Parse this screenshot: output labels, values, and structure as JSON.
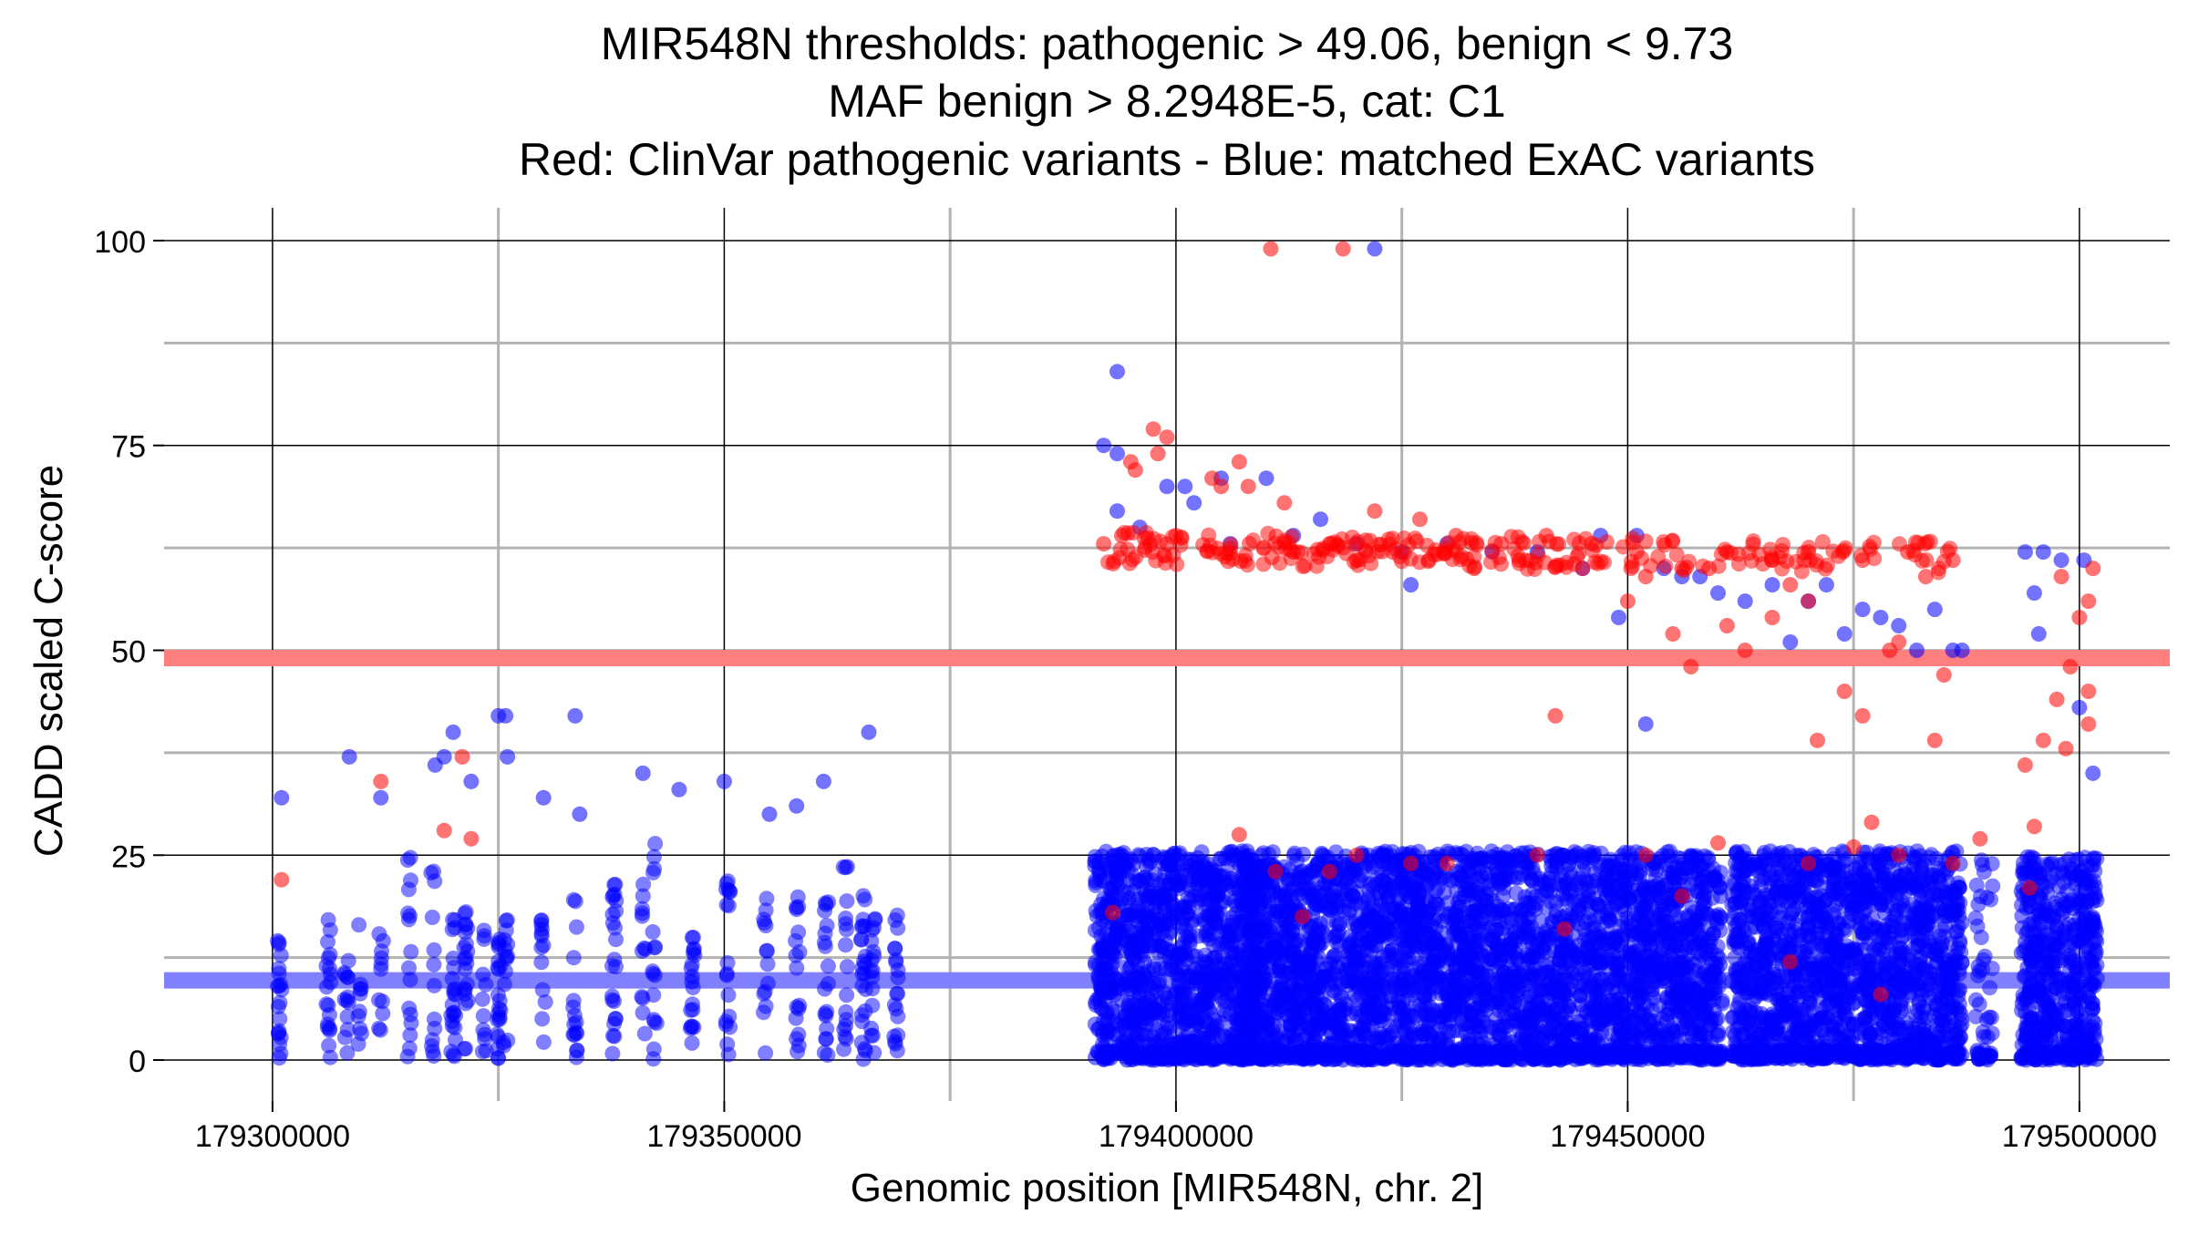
{
  "chart_data": {
    "type": "scatter",
    "title_lines": [
      "MIR548N thresholds: pathogenic > 49.06, benign < 9.73",
      "MAF benign > 8.2948E-5, cat: C1",
      "Red: ClinVar pathogenic variants - Blue: matched ExAC variants"
    ],
    "xlabel": "Genomic position [MIR548N, chr. 2]",
    "ylabel": "CADD scaled C-score",
    "xlim": [
      179288000,
      179510000
    ],
    "ylim": [
      -5,
      104
    ],
    "x_ticks": [
      179300000,
      179350000,
      179400000,
      179450000,
      179500000
    ],
    "x_tick_labels": [
      "179300000",
      "179350000",
      "179400000",
      "179450000",
      "179500000"
    ],
    "y_ticks": [
      0,
      25,
      50,
      75,
      100
    ],
    "y_tick_labels": [
      "0",
      "25",
      "50",
      "75",
      "100"
    ],
    "x_minor_gridlines": [
      179325000,
      179375000,
      179425000,
      179475000
    ],
    "y_minor_gridlines": [
      12.5,
      37.5,
      62.5,
      87.5
    ],
    "grid": true,
    "thresholds": [
      {
        "name": "pathogenic",
        "value": 49.06,
        "color": "#ff7f7f"
      },
      {
        "name": "benign",
        "value": 9.73,
        "color": "#8080ff"
      }
    ],
    "series_colors": {
      "pathogenic": "#ff0000",
      "benign": "#0000ff"
    },
    "outlier_points": {
      "pathogenic": [
        [
          179410500,
          99
        ],
        [
          179418500,
          99
        ],
        [
          179397500,
          77
        ],
        [
          179399000,
          76
        ],
        [
          179395000,
          73
        ],
        [
          179395500,
          72
        ],
        [
          179398000,
          74
        ],
        [
          179407000,
          73
        ],
        [
          179408000,
          70
        ],
        [
          179412000,
          68
        ],
        [
          179392000,
          63
        ],
        [
          179394000,
          64
        ],
        [
          179400000,
          64
        ],
        [
          179404000,
          71
        ],
        [
          179405000,
          70
        ],
        [
          179417000,
          63
        ],
        [
          179422000,
          67
        ],
        [
          179427000,
          66
        ],
        [
          179431000,
          64
        ],
        [
          179436000,
          63
        ],
        [
          179441000,
          64
        ],
        [
          179446000,
          63
        ],
        [
          179451000,
          62
        ],
        [
          179456000,
          60
        ],
        [
          179461000,
          62
        ],
        [
          179466000,
          61
        ],
        [
          179470000,
          62
        ],
        [
          179476000,
          61
        ],
        [
          179481000,
          62
        ],
        [
          179486000,
          61
        ],
        [
          179442000,
          42
        ],
        [
          179450000,
          56
        ],
        [
          179455000,
          52
        ],
        [
          179457000,
          48
        ],
        [
          179466000,
          54
        ],
        [
          179463000,
          50
        ],
        [
          179471000,
          39
        ],
        [
          179474000,
          45
        ],
        [
          179476000,
          42
        ],
        [
          179480000,
          51
        ],
        [
          179484000,
          39
        ],
        [
          179485000,
          47
        ],
        [
          179477000,
          29
        ],
        [
          179489000,
          27
        ],
        [
          179494000,
          36
        ],
        [
          179495000,
          28.5
        ],
        [
          179496000,
          39
        ],
        [
          179497500,
          44
        ],
        [
          179498000,
          59
        ],
        [
          179499000,
          48
        ],
        [
          179500000,
          54
        ],
        [
          179501000,
          56
        ],
        [
          179501000,
          45
        ],
        [
          179501000,
          41
        ],
        [
          179498500,
          38
        ],
        [
          179501500,
          60
        ],
        [
          179479000,
          50
        ],
        [
          179483000,
          59
        ],
        [
          179470000,
          56
        ],
        [
          179461000,
          53
        ],
        [
          179413000,
          62
        ],
        [
          179420000,
          61
        ],
        [
          179428000,
          61
        ],
        [
          179438000,
          61
        ],
        [
          179433000,
          60
        ],
        [
          179424000,
          62
        ],
        [
          179445000,
          60
        ],
        [
          179452000,
          59
        ],
        [
          179459000,
          60
        ],
        [
          179468000,
          58
        ],
        [
          179393000,
          18
        ],
        [
          179407000,
          27.5
        ],
        [
          179411000,
          23
        ],
        [
          179414000,
          17.5
        ],
        [
          179420000,
          25
        ],
        [
          179430000,
          24
        ],
        [
          179440000,
          25
        ],
        [
          179443000,
          16
        ],
        [
          179452000,
          25
        ],
        [
          179456000,
          20
        ],
        [
          179460000,
          26.5
        ],
        [
          179470000,
          24
        ],
        [
          179475000,
          26
        ],
        [
          179478000,
          8
        ],
        [
          179468000,
          12
        ],
        [
          179494500,
          21
        ],
        [
          179321000,
          37
        ],
        [
          179312000,
          34
        ],
        [
          179301000,
          22
        ],
        [
          179319000,
          28
        ],
        [
          179322000,
          27
        ],
        [
          179417000,
          23
        ],
        [
          179426000,
          24
        ],
        [
          179480000,
          25
        ],
        [
          179486000,
          24
        ]
      ],
      "benign": [
        [
          179422000,
          99
        ],
        [
          179393500,
          84
        ],
        [
          179392000,
          75
        ],
        [
          179393500,
          74
        ],
        [
          179393500,
          67
        ],
        [
          179396000,
          65
        ],
        [
          179399000,
          70
        ],
        [
          179401000,
          70
        ],
        [
          179405000,
          71
        ],
        [
          179410000,
          71
        ],
        [
          179416000,
          66
        ],
        [
          179420000,
          63
        ],
        [
          179425000,
          62
        ],
        [
          179430000,
          63
        ],
        [
          179435000,
          62
        ],
        [
          179440000,
          62
        ],
        [
          179445000,
          60
        ],
        [
          179447000,
          64
        ],
        [
          179449000,
          54
        ],
        [
          179451000,
          64
        ],
        [
          179454000,
          60
        ],
        [
          179456000,
          59
        ],
        [
          179458000,
          59
        ],
        [
          179460000,
          57
        ],
        [
          179463000,
          56
        ],
        [
          179466000,
          58
        ],
        [
          179468000,
          51
        ],
        [
          179470000,
          56
        ],
        [
          179472000,
          58
        ],
        [
          179474000,
          52
        ],
        [
          179476000,
          55
        ],
        [
          179478000,
          54
        ],
        [
          179480000,
          53
        ],
        [
          179482000,
          50
        ],
        [
          179484000,
          55
        ],
        [
          179486000,
          50
        ],
        [
          179487000,
          50
        ],
        [
          179494000,
          62
        ],
        [
          179495000,
          57
        ],
        [
          179495500,
          52
        ],
        [
          179496000,
          62
        ],
        [
          179498000,
          61
        ],
        [
          179500000,
          43
        ],
        [
          179500500,
          61
        ],
        [
          179501500,
          35
        ],
        [
          179452000,
          41
        ],
        [
          179426000,
          58
        ],
        [
          179406000,
          63
        ],
        [
          179413000,
          64
        ],
        [
          179402000,
          68
        ],
        [
          179320000,
          40
        ],
        [
          179325000,
          42
        ],
        [
          179325800,
          42
        ],
        [
          179333500,
          42
        ],
        [
          179366000,
          40
        ],
        [
          179308500,
          37
        ],
        [
          179319000,
          37
        ],
        [
          179326000,
          37
        ],
        [
          179301000,
          32
        ],
        [
          179312000,
          32
        ],
        [
          179318000,
          36
        ],
        [
          179322000,
          34
        ],
        [
          179341000,
          35
        ],
        [
          179345000,
          33
        ],
        [
          179350000,
          34
        ],
        [
          179355000,
          30
        ],
        [
          179358000,
          31
        ],
        [
          179361000,
          34
        ],
        [
          179330000,
          32
        ],
        [
          179334000,
          30
        ]
      ]
    },
    "bands": [
      {
        "x0": 179300000,
        "x1": 179369500,
        "y_max": 27,
        "density": "sparse",
        "color": "#0000ff"
      },
      {
        "x0": 179391000,
        "x1": 179409500,
        "y_max": 25.5,
        "density": "dense",
        "color": "#0000ff"
      },
      {
        "x0": 179407000,
        "x1": 179426000,
        "y_max": 25.5,
        "density": "dense",
        "color": "#0000ff"
      },
      {
        "x0": 179426000,
        "x1": 179460500,
        "y_max": 25.5,
        "density": "dense",
        "color": "#0000ff"
      },
      {
        "x0": 179461500,
        "x1": 179487000,
        "y_max": 25.5,
        "density": "dense",
        "color": "#0000ff"
      },
      {
        "x0": 179488500,
        "x1": 179490500,
        "y_max": 25,
        "density": "medium",
        "color": "#0000ff"
      },
      {
        "x0": 179493500,
        "x1": 179502000,
        "y_max": 25,
        "density": "dense",
        "color": "#0000ff"
      }
    ],
    "sparse_columns_x": [
      179300800,
      179306200,
      179308200,
      179309600,
      179312000,
      179315100,
      179317800,
      179320000,
      179321400,
      179323400,
      179325000,
      179325800,
      179330000,
      179333500,
      179337800,
      179341100,
      179342300,
      179346500,
      179350400,
      179354600,
      179358100,
      179361300,
      179363400,
      179365400,
      179366500,
      179369000
    ]
  }
}
